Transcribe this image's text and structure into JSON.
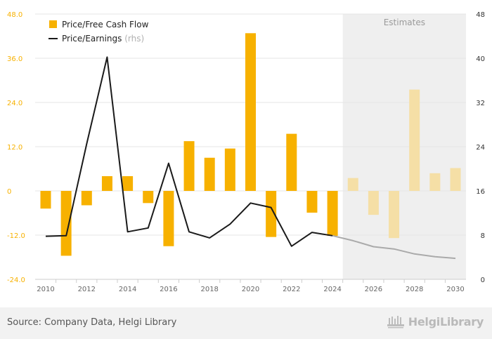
{
  "chart_data": {
    "type": "bar",
    "x": [
      2010,
      2011,
      2012,
      2013,
      2014,
      2015,
      2016,
      2017,
      2018,
      2019,
      2020,
      2021,
      2022,
      2023,
      2024,
      2025,
      2026,
      2027,
      2028,
      2029,
      2030
    ],
    "xticks": [
      2010,
      2012,
      2014,
      2016,
      2018,
      2020,
      2022,
      2024,
      2026,
      2028,
      2030
    ],
    "series": [
      {
        "name": "Price/Free Cash Flow",
        "type": "bar",
        "axis": "left",
        "color": "#f7b100",
        "estimate_color": "#f5dfa6",
        "values": [
          -4.8,
          -17.6,
          -3.9,
          4.0,
          4.0,
          -3.3,
          -15.0,
          13.5,
          9.0,
          11.5,
          42.8,
          -12.5,
          15.5,
          -5.9,
          -12.2,
          3.5,
          -6.5,
          -12.8,
          27.5,
          4.8,
          6.2
        ]
      },
      {
        "name": "Price/Earnings",
        "name_suffix": "(rhs)",
        "type": "line",
        "axis": "right",
        "color": "#1a1a1a",
        "estimate_color": "#aaaaaa",
        "values": [
          7.8,
          7.9,
          24.5,
          40.2,
          8.6,
          9.3,
          21.0,
          8.6,
          7.5,
          10.0,
          13.8,
          13.0,
          6.0,
          8.5,
          7.9,
          7.0,
          5.9,
          5.5,
          4.6,
          4.1,
          3.8
        ]
      }
    ],
    "estimates_from": 2025,
    "estimates_label": "Estimates",
    "left_axis": {
      "ylim": [
        -24,
        48
      ],
      "ticks": [
        "-24.0",
        "-12.0",
        "0",
        "12.0",
        "24.0",
        "36.0",
        "48.0"
      ],
      "color": "#f7b100"
    },
    "right_axis": {
      "ylim": [
        0,
        48
      ],
      "ticks": [
        "0",
        "8",
        "16",
        "24",
        "32",
        "40",
        "48"
      ]
    },
    "legend_position": "top-left",
    "grid": "horizontal"
  },
  "footer": {
    "source": "Source: Company Data, Helgi Library",
    "brand": "HelgiLibrary"
  },
  "colors": {
    "gridline": "#e6e6e6",
    "estimate_band": "#efefef",
    "axis_text": "#666666"
  }
}
